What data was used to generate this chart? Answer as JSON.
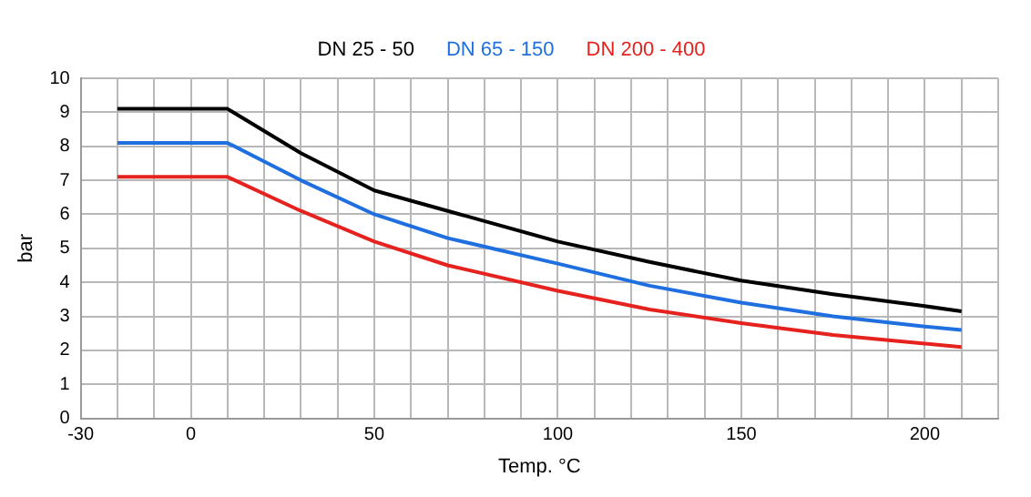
{
  "chart_data": {
    "type": "line",
    "xlabel": "Temp. °C",
    "ylabel": "bar",
    "xlim": [
      -30,
      220
    ],
    "ylim": [
      0,
      10
    ],
    "xticks": [
      -30,
      {
        "value": -20,
        "label": null
      },
      {
        "value": -10,
        "label": null
      },
      0,
      {
        "value": 10,
        "label": null
      },
      {
        "value": 20,
        "label": null
      },
      {
        "value": 30,
        "label": null
      },
      {
        "value": 40,
        "label": null
      },
      50,
      {
        "value": 60,
        "label": null
      },
      {
        "value": 70,
        "label": null
      },
      {
        "value": 80,
        "label": null
      },
      {
        "value": 90,
        "label": null
      },
      100,
      {
        "value": 110,
        "label": null
      },
      {
        "value": 120,
        "label": null
      },
      {
        "value": 130,
        "label": null
      },
      {
        "value": 140,
        "label": null
      },
      150,
      {
        "value": 160,
        "label": null
      },
      {
        "value": 170,
        "label": null
      },
      {
        "value": 180,
        "label": null
      },
      {
        "value": 190,
        "label": null
      },
      200,
      {
        "value": 210,
        "label": null
      },
      {
        "value": 220,
        "label": null
      }
    ],
    "yticks": [
      0,
      1,
      2,
      3,
      4,
      5,
      6,
      7,
      8,
      9,
      10
    ],
    "grid": true,
    "legend": "top",
    "marker": "none",
    "line_style": "solid",
    "x": [
      -20,
      10,
      30,
      50,
      70,
      100,
      125,
      150,
      175,
      200,
      210
    ],
    "series": [
      {
        "name": "DN 25 - 50",
        "color": "#000000",
        "values": [
          9.1,
          9.1,
          7.8,
          6.7,
          6.1,
          5.2,
          4.6,
          4.05,
          3.65,
          3.3,
          3.15
        ]
      },
      {
        "name": "DN 65 - 150",
        "color": "#1f6fe0",
        "values": [
          8.1,
          8.1,
          7.0,
          6.0,
          5.3,
          4.55,
          3.9,
          3.4,
          3.0,
          2.7,
          2.6
        ]
      },
      {
        "name": "DN 200 - 400",
        "color": "#e5221e",
        "values": [
          7.1,
          7.1,
          6.1,
          5.2,
          4.5,
          3.75,
          3.2,
          2.8,
          2.45,
          2.2,
          2.1
        ]
      }
    ]
  }
}
